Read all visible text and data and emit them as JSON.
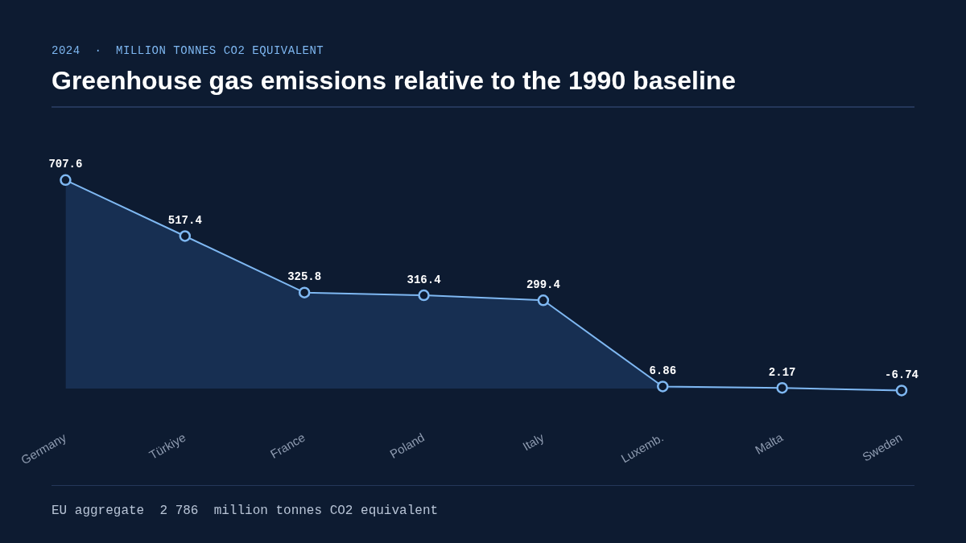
{
  "chart_data": {
    "type": "area",
    "title": "Greenhouse gas emissions relative to the 1990 baseline",
    "subtitle": "2024  ·  MILLION TONNES CO2 EQUIVALENT",
    "categories": [
      "Germany",
      "Türkiye",
      "France",
      "Poland",
      "Italy",
      "Luxemb.",
      "Malta",
      "Sweden"
    ],
    "series": [
      {
        "color": "#7fb8f2",
        "values": [
          707.6,
          517.4,
          325.8,
          316.4,
          299.4,
          6.86,
          2.17,
          -6.74
        ]
      }
    ],
    "data_labels": true,
    "marker": "circle",
    "grid": false,
    "tick_labels": "x",
    "legend": false,
    "annotations": [
      "EU aggregate  2 786  million tonnes CO2 equivalent"
    ]
  }
}
